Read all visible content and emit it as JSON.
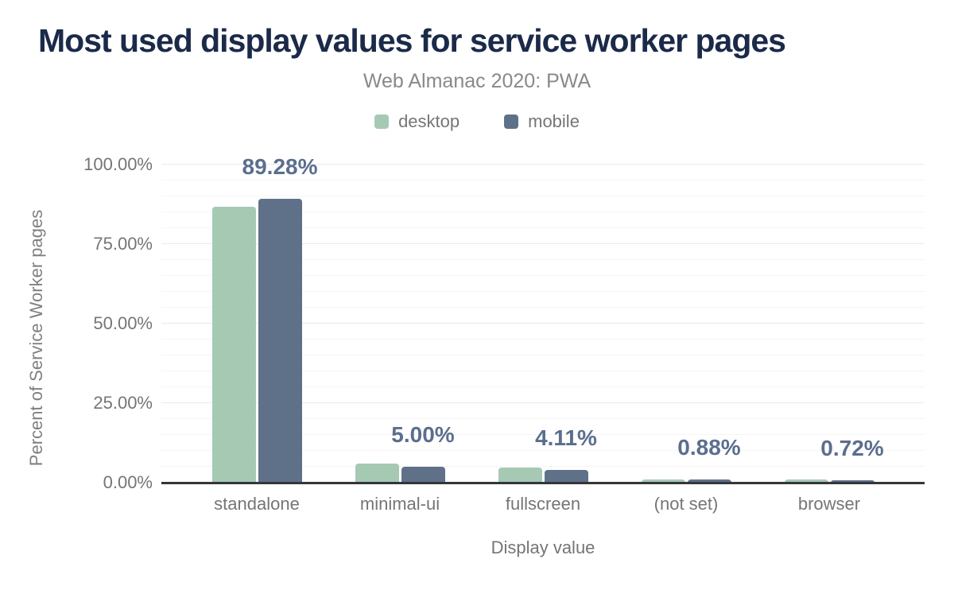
{
  "header": {
    "title": "Most used display values for service worker pages",
    "subtitle": "Web Almanac 2020: PWA"
  },
  "legend": {
    "position": "top",
    "items": [
      {
        "label": "desktop",
        "color": "#a6c9b4"
      },
      {
        "label": "mobile",
        "color": "#5f7189"
      }
    ]
  },
  "axes": {
    "x_title": "Display value",
    "y_title": "Percent of Service Worker pages",
    "y_ticks": [
      {
        "label": "100.00%",
        "value": 100
      },
      {
        "label": "75.00%",
        "value": 75
      },
      {
        "label": "50.00%",
        "value": 50
      },
      {
        "label": "25.00%",
        "value": 25
      },
      {
        "label": "0.00%",
        "value": 0
      }
    ]
  },
  "chart_data": {
    "type": "bar",
    "title": "Most used display values for service worker pages",
    "subtitle": "Web Almanac 2020: PWA",
    "xlabel": "Display value",
    "ylabel": "Percent of Service Worker pages",
    "categories": [
      "standalone",
      "minimal-ui",
      "fullscreen",
      "(not set)",
      "browser"
    ],
    "series": [
      {
        "name": "desktop",
        "color": "#a6c9b4",
        "values": [
          86.7,
          6.1,
          4.7,
          1.1,
          1.0
        ]
      },
      {
        "name": "mobile",
        "color": "#5f7189",
        "values": [
          89.28,
          5.0,
          4.11,
          0.88,
          0.72
        ]
      }
    ],
    "data_labels": [
      "89.28%",
      "5.00%",
      "4.11%",
      "0.88%",
      "0.72%"
    ],
    "data_labels_series": "mobile",
    "ylim": [
      0,
      100
    ],
    "grid": {
      "minor_step": 5,
      "major_step": 25
    },
    "legend_position": "top"
  },
  "colors": {
    "title": "#1b2a49",
    "subtitle": "#87898c",
    "axis_text": "#757575",
    "y_axis_title_text": "#808080",
    "data_label": "#5b6e8e",
    "axis_line": "#35363a",
    "grid_minor": "#f5f5f5",
    "grid_major": "#e9e9e9"
  }
}
